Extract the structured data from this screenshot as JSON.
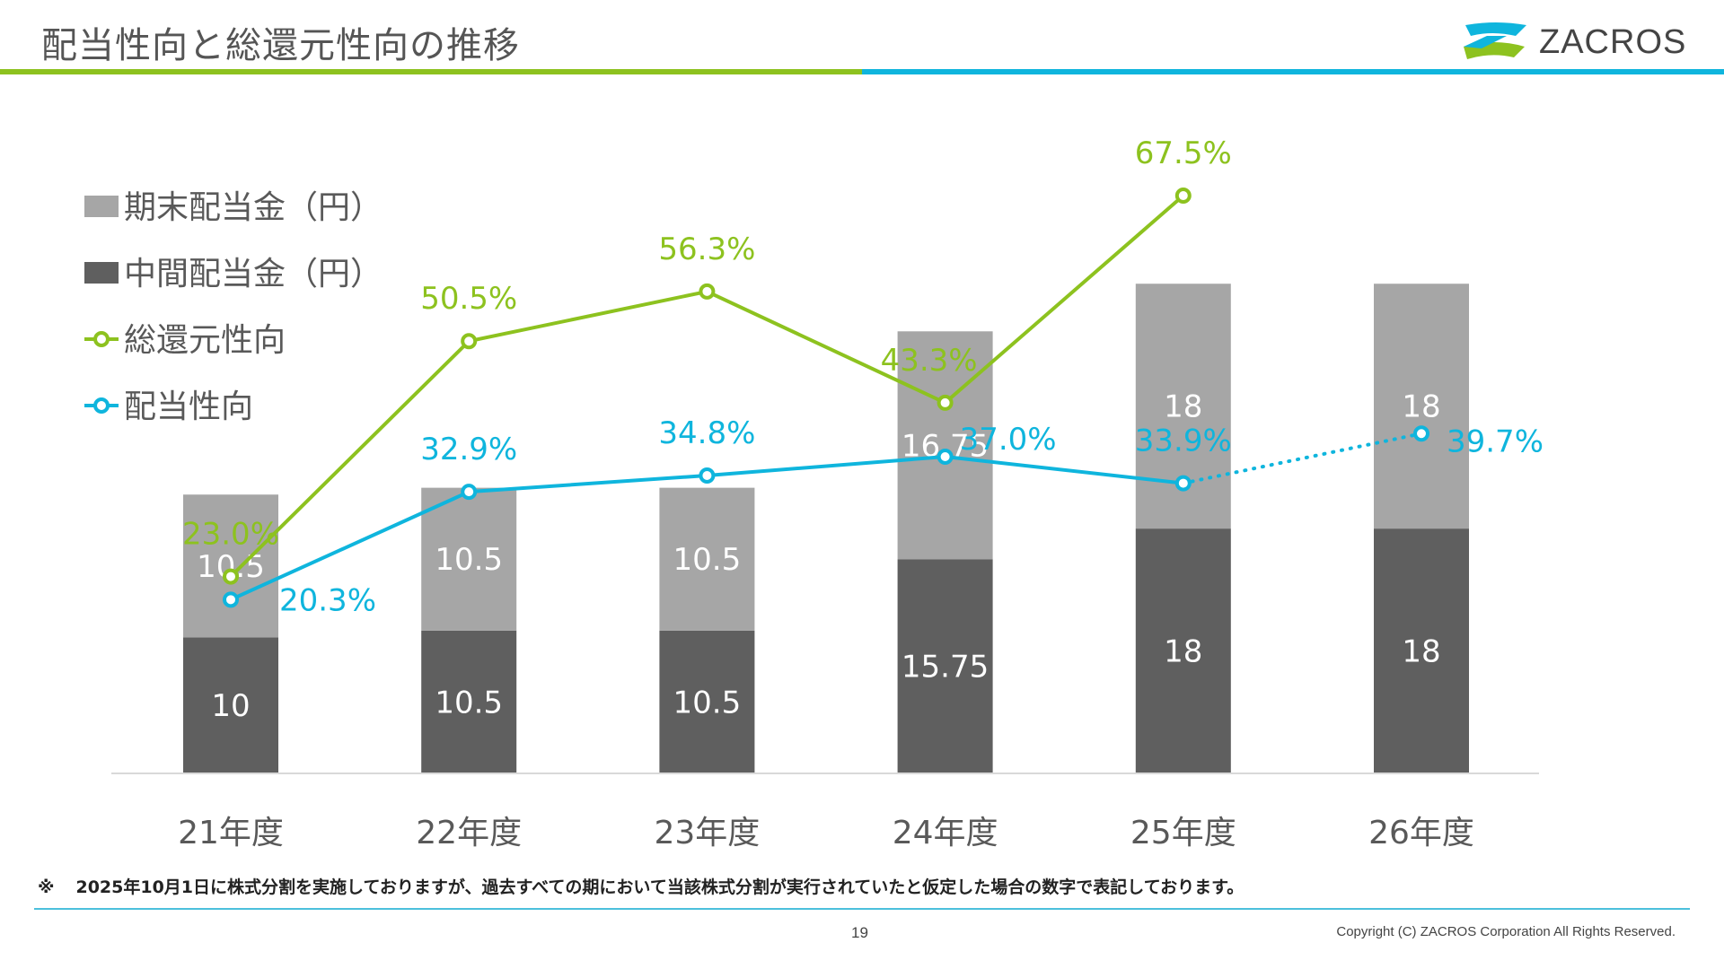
{
  "slide": {
    "title": "配当性向と総還元性向の推移",
    "brand": "ZACROS",
    "note_mark": "※",
    "note": "2025年10月1日に株式分割を実施しておりますが、過去すべての期において当該株式分割が実行されていたと仮定した場合の数字で表記しております。",
    "page_number": "19",
    "copyright": "Copyright (C) ZACROS Corporation  All Rights Reserved.",
    "colors": {
      "green": "#8dc21f",
      "blue": "#0fb5dd",
      "gray_light": "#a6a6a6",
      "gray_dark": "#5f5f5f"
    }
  },
  "chart_data": {
    "type": "bar",
    "categories": [
      "21年度",
      "22年度",
      "23年度",
      "24年度",
      "25年度",
      "26年度"
    ],
    "series": [
      {
        "name": "中間配当金（円）",
        "kind": "stacked-bar",
        "values": [
          10,
          10.5,
          10.5,
          15.75,
          18,
          18
        ],
        "labels": [
          "10",
          "10.5",
          "10.5",
          "15.75",
          "18",
          "18"
        ],
        "color": "#5f5f5f"
      },
      {
        "name": "期末配当金（円）",
        "kind": "stacked-bar",
        "values": [
          10.5,
          10.5,
          10.5,
          16.75,
          18,
          18
        ],
        "labels": [
          "10.5",
          "10.5",
          "10.5",
          "16.75",
          "18",
          "18"
        ],
        "color": "#a6a6a6"
      },
      {
        "name": "総還元性向",
        "kind": "line",
        "values": [
          23.0,
          50.5,
          56.3,
          43.3,
          67.5,
          null
        ],
        "labels": [
          "23.0%",
          "50.5%",
          "56.3%",
          "43.3%",
          "67.5%",
          ""
        ],
        "color": "#8dc21f"
      },
      {
        "name": "配当性向",
        "kind": "line",
        "values": [
          20.3,
          32.9,
          34.8,
          37.0,
          33.9,
          39.7
        ],
        "labels": [
          "20.3%",
          "32.9%",
          "34.8%",
          "37.0%",
          "33.9%",
          "39.7%"
        ],
        "color": "#0fb5dd",
        "dotted_from_index": 4
      }
    ],
    "legend_order": [
      "期末配当金（円）",
      "中間配当金（円）",
      "総還元性向",
      "配当性向"
    ],
    "legend_position": "top-left",
    "bar_ylim": [
      0,
      40
    ],
    "line_ylim": [
      0,
      90
    ],
    "grid": false
  }
}
